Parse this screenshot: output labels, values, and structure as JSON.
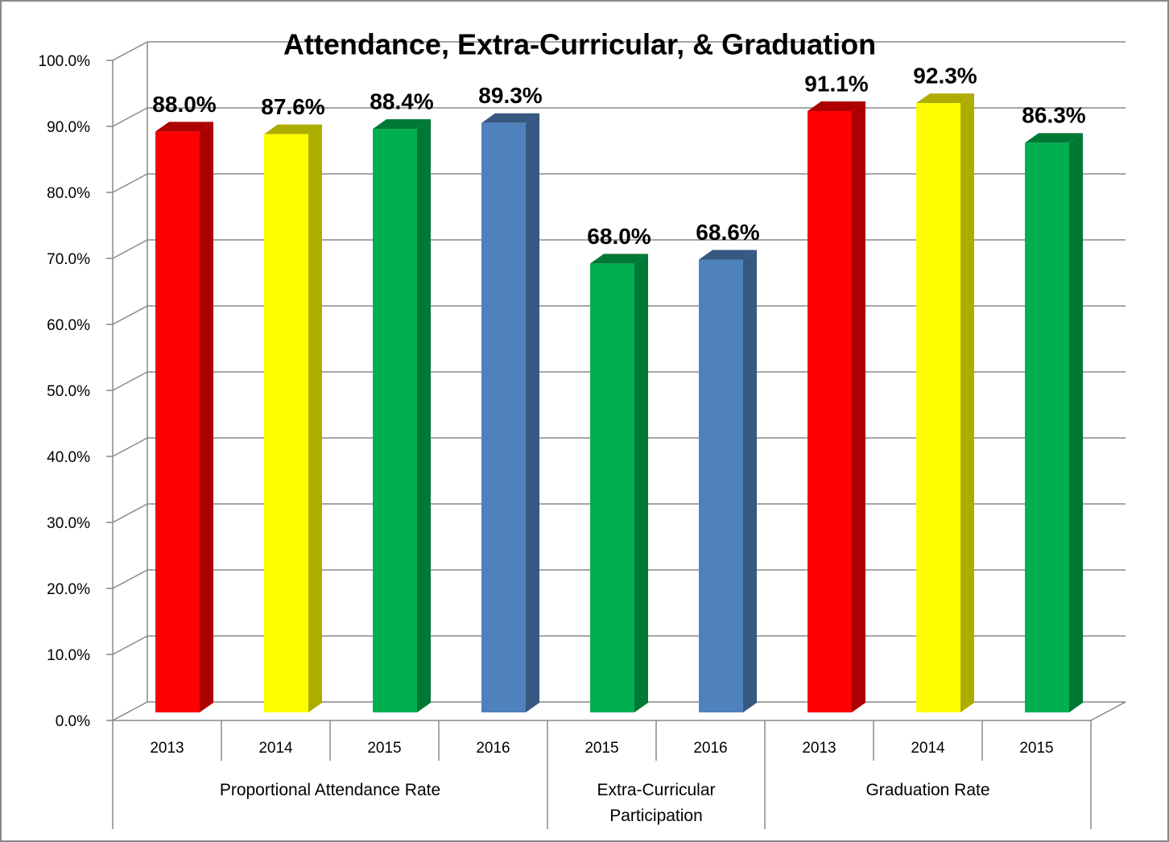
{
  "chart_data": {
    "type": "bar3d",
    "title": "Attendance, Extra-Curricular, & Graduation",
    "ylim": [
      0,
      100
    ],
    "yticks": [
      {
        "value": 0,
        "label": "0.0%"
      },
      {
        "value": 10,
        "label": "10.0%"
      },
      {
        "value": 20,
        "label": "20.0%"
      },
      {
        "value": 30,
        "label": "30.0%"
      },
      {
        "value": 40,
        "label": "40.0%"
      },
      {
        "value": 50,
        "label": "50.0%"
      },
      {
        "value": 60,
        "label": "60.0%"
      },
      {
        "value": 70,
        "label": "70.0%"
      },
      {
        "value": 80,
        "label": "80.0%"
      },
      {
        "value": 90,
        "label": "90.0%"
      },
      {
        "value": 100,
        "label": "100.0%"
      }
    ],
    "grid": true,
    "groups": [
      {
        "name": "Proportional Attendance Rate",
        "categories": [
          "2013",
          "2014",
          "2015",
          "2016"
        ],
        "values": [
          88.0,
          87.6,
          88.4,
          89.3
        ],
        "value_labels": [
          "88.0%",
          "87.6%",
          "88.4%",
          "89.3%"
        ],
        "colors": [
          "#ff0000",
          "#ffff00",
          "#00b050",
          "#4f81bd"
        ]
      },
      {
        "name": "Extra-Curricular Participation",
        "categories": [
          "2015",
          "2016"
        ],
        "values": [
          68.0,
          68.6
        ],
        "value_labels": [
          "68.0%",
          "68.6%"
        ],
        "colors": [
          "#00b050",
          "#4f81bd"
        ]
      },
      {
        "name": "Graduation Rate",
        "categories": [
          "2013",
          "2014",
          "2015"
        ],
        "values": [
          91.1,
          92.3,
          86.3
        ],
        "value_labels": [
          "91.1%",
          "92.3%",
          "86.3%"
        ],
        "colors": [
          "#ff0000",
          "#ffff00",
          "#00b050"
        ]
      }
    ]
  }
}
